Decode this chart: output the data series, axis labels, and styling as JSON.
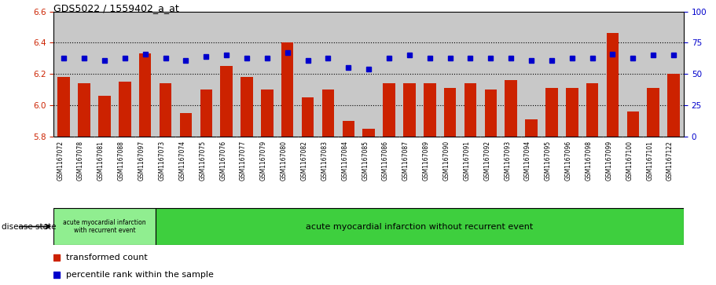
{
  "title": "GDS5022 / 1559402_a_at",
  "samples": [
    "GSM1167072",
    "GSM1167078",
    "GSM1167081",
    "GSM1167088",
    "GSM1167097",
    "GSM1167073",
    "GSM1167074",
    "GSM1167075",
    "GSM1167076",
    "GSM1167077",
    "GSM1167079",
    "GSM1167080",
    "GSM1167082",
    "GSM1167083",
    "GSM1167084",
    "GSM1167085",
    "GSM1167086",
    "GSM1167087",
    "GSM1167089",
    "GSM1167090",
    "GSM1167091",
    "GSM1167092",
    "GSM1167093",
    "GSM1167094",
    "GSM1167095",
    "GSM1167096",
    "GSM1167098",
    "GSM1167099",
    "GSM1167100",
    "GSM1167101",
    "GSM1167122"
  ],
  "bar_values": [
    6.18,
    6.14,
    6.06,
    6.15,
    6.33,
    6.14,
    5.95,
    6.1,
    6.25,
    6.18,
    6.1,
    6.4,
    6.05,
    6.1,
    5.9,
    5.85,
    6.14,
    6.14,
    6.14,
    6.11,
    6.14,
    6.1,
    6.16,
    5.91,
    6.11,
    6.11,
    6.14,
    6.46,
    5.96,
    6.11,
    6.2
  ],
  "dot_values": [
    63,
    63,
    61,
    63,
    66,
    63,
    61,
    64,
    65,
    63,
    63,
    67,
    61,
    63,
    55,
    54,
    63,
    65,
    63,
    63,
    63,
    63,
    63,
    61,
    61,
    63,
    63,
    66,
    63,
    65,
    65
  ],
  "group1_count": 5,
  "group1_label": "acute myocardial infarction\nwith recurrent event",
  "group2_label": "acute myocardial infarction without recurrent event",
  "group1_color": "#90ee90",
  "group2_color": "#3ecf3e",
  "bar_color": "#cc2200",
  "dot_color": "#0000cc",
  "ylim_left": [
    5.8,
    6.6
  ],
  "ylim_right": [
    0,
    100
  ],
  "yticks_left": [
    5.8,
    6.0,
    6.2,
    6.4,
    6.6
  ],
  "yticks_right": [
    0,
    25,
    50,
    75,
    100
  ],
  "grid_values": [
    6.0,
    6.2,
    6.4
  ],
  "legend_bar_label": "transformed count",
  "legend_dot_label": "percentile rank within the sample",
  "disease_state_label": "disease state",
  "plot_bg_color": "#c8c8c8",
  "bar_width": 0.6
}
